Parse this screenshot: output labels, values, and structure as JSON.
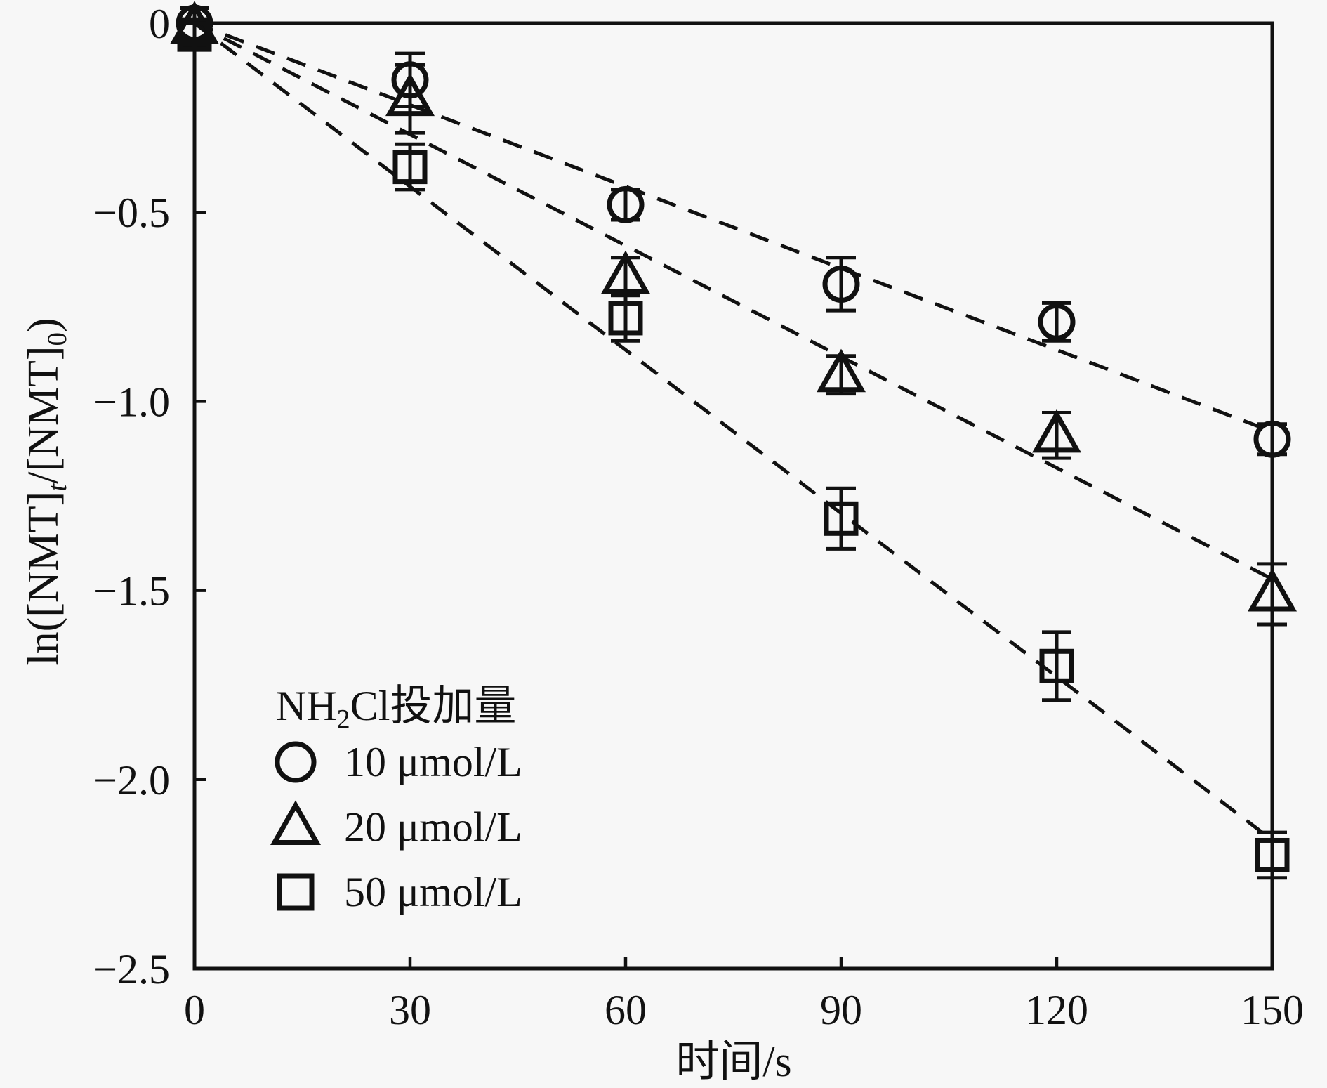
{
  "figure": {
    "background_color": "#f7f7f7",
    "ink_color": "#111111"
  },
  "chart_data": {
    "type": "scatter",
    "title": "",
    "xlabel": "时间/s",
    "ylabel": "ln([NMT]t/[NMT]0)",
    "ylabel_rich": [
      {
        "t": "ln([NMT]"
      },
      {
        "t": "t",
        "sub": true,
        "italic": true
      },
      {
        "t": "/[NMT]"
      },
      {
        "t": "0",
        "sub": true
      },
      {
        "t": ")"
      }
    ],
    "xlim": [
      0,
      150
    ],
    "ylim": [
      -2.5,
      0
    ],
    "x_ticks": [
      0,
      30,
      60,
      90,
      120,
      150
    ],
    "x_tick_labels": [
      "0",
      "30",
      "60",
      "90",
      "120",
      "150"
    ],
    "y_ticks": [
      0,
      -0.5,
      -1.0,
      -1.5,
      -2.0,
      -2.5
    ],
    "y_tick_labels": [
      "0",
      "−0.5",
      "−1.0",
      "−1.5",
      "−2.0",
      "−2.5"
    ],
    "grid": false,
    "x": [
      0,
      30,
      60,
      90,
      120,
      150
    ],
    "series": [
      {
        "name": "10 μmol/L",
        "marker": "circle",
        "values": [
          0.0,
          -0.15,
          -0.48,
          -0.69,
          -0.79,
          -1.1
        ],
        "errors": [
          0.04,
          0.07,
          0.04,
          0.07,
          0.05,
          0.04
        ],
        "trend_slope_per_s": -0.0072,
        "trend_style": "dashed"
      },
      {
        "name": "20 μmol/L",
        "marker": "triangle",
        "values": [
          -0.01,
          -0.2,
          -0.67,
          -0.93,
          -1.09,
          -1.51
        ],
        "errors": [
          0.05,
          0.09,
          0.05,
          0.05,
          0.06,
          0.08
        ],
        "trend_slope_per_s": -0.0098,
        "trend_style": "dashed"
      },
      {
        "name": "50 μmol/L",
        "marker": "square",
        "values": [
          -0.03,
          -0.38,
          -0.78,
          -1.31,
          -1.7,
          -2.2
        ],
        "errors": [
          0.03,
          0.06,
          0.06,
          0.08,
          0.09,
          0.06
        ],
        "trend_slope_per_s": -0.0144,
        "trend_style": "dashed"
      }
    ],
    "legend": {
      "position": "inside-lower-left",
      "title": "NH2Cl投加量",
      "title_rich": [
        {
          "t": "NH"
        },
        {
          "t": "2",
          "sub": true
        },
        {
          "t": "Cl投加量"
        }
      ],
      "items": [
        "10 μmol/L",
        "20 μmol/L",
        "50 μmol/L"
      ]
    }
  }
}
